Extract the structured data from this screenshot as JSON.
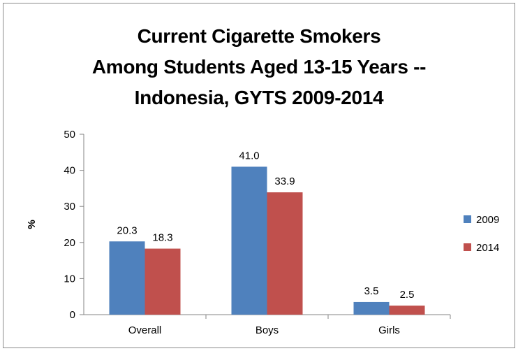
{
  "chart_data": {
    "type": "bar",
    "title_lines": [
      "Current Cigarette Smokers",
      "Among Students Aged 13-15 Years --",
      "Indonesia, GYTS 2009-2014"
    ],
    "xlabel": "",
    "ylabel": "%",
    "ylim": [
      0,
      50
    ],
    "yticks": [
      0,
      10,
      20,
      30,
      40,
      50
    ],
    "categories": [
      "Overall",
      "Boys",
      "Girls"
    ],
    "series": [
      {
        "name": "2009",
        "values": [
          20.3,
          41.0,
          3.5
        ],
        "labels": [
          "20.3",
          "41.0",
          "3.5"
        ],
        "color": "#4f81bd"
      },
      {
        "name": "2014",
        "values": [
          18.3,
          33.9,
          2.5
        ],
        "labels": [
          "18.3",
          "33.9",
          "2.5"
        ],
        "color": "#c0504d"
      }
    ],
    "legend_position": "right",
    "grid": false
  }
}
